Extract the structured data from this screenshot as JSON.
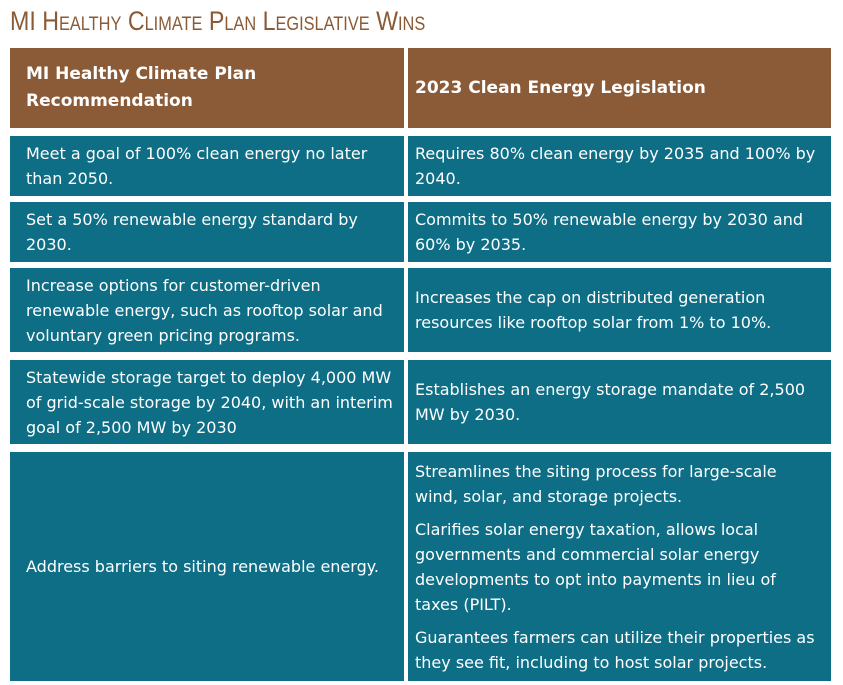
{
  "title": "MI Healthy Climate Plan Legislative Wins",
  "table": {
    "headers": [
      "MI Healthy Climate Plan Recommendation",
      "2023 Clean Energy Legislation"
    ],
    "rows": [
      {
        "recommendation": "Meet a goal of 100% clean energy no later than 2050.",
        "legislation": [
          "Requires 80% clean energy by 2035 and 100% by 2040."
        ]
      },
      {
        "recommendation": "Set a 50% renewable energy standard by 2030.",
        "legislation": [
          "Commits to 50% renewable energy by 2030 and 60% by 2035."
        ]
      },
      {
        "recommendation": "Increase options for customer-driven renewable energy, such as rooftop solar and voluntary green pricing programs.",
        "legislation": [
          "Increases the cap on distributed generation resources like rooftop solar from 1% to 10%."
        ]
      },
      {
        "recommendation": "Statewide storage target to deploy 4,000 MW of grid-scale storage by 2040, with an interim goal of 2,500 MW by 2030",
        "legislation": [
          "Establishes an energy storage mandate of 2,500 MW by 2030."
        ]
      },
      {
        "recommendation": "Address barriers to siting renewable energy.",
        "legislation": [
          "Streamlines the siting process for large-scale wind, solar, and storage projects.",
          "Clarifies solar energy taxation, allows local governments and commercial solar energy developments to opt into payments in lieu of taxes (PILT).",
          "Guarantees farmers can utilize their properties as they see fit, including to host solar projects."
        ]
      }
    ]
  },
  "colors": {
    "title": "#8b5a35",
    "header": "#8b5a37",
    "body": "#0e6e86"
  }
}
